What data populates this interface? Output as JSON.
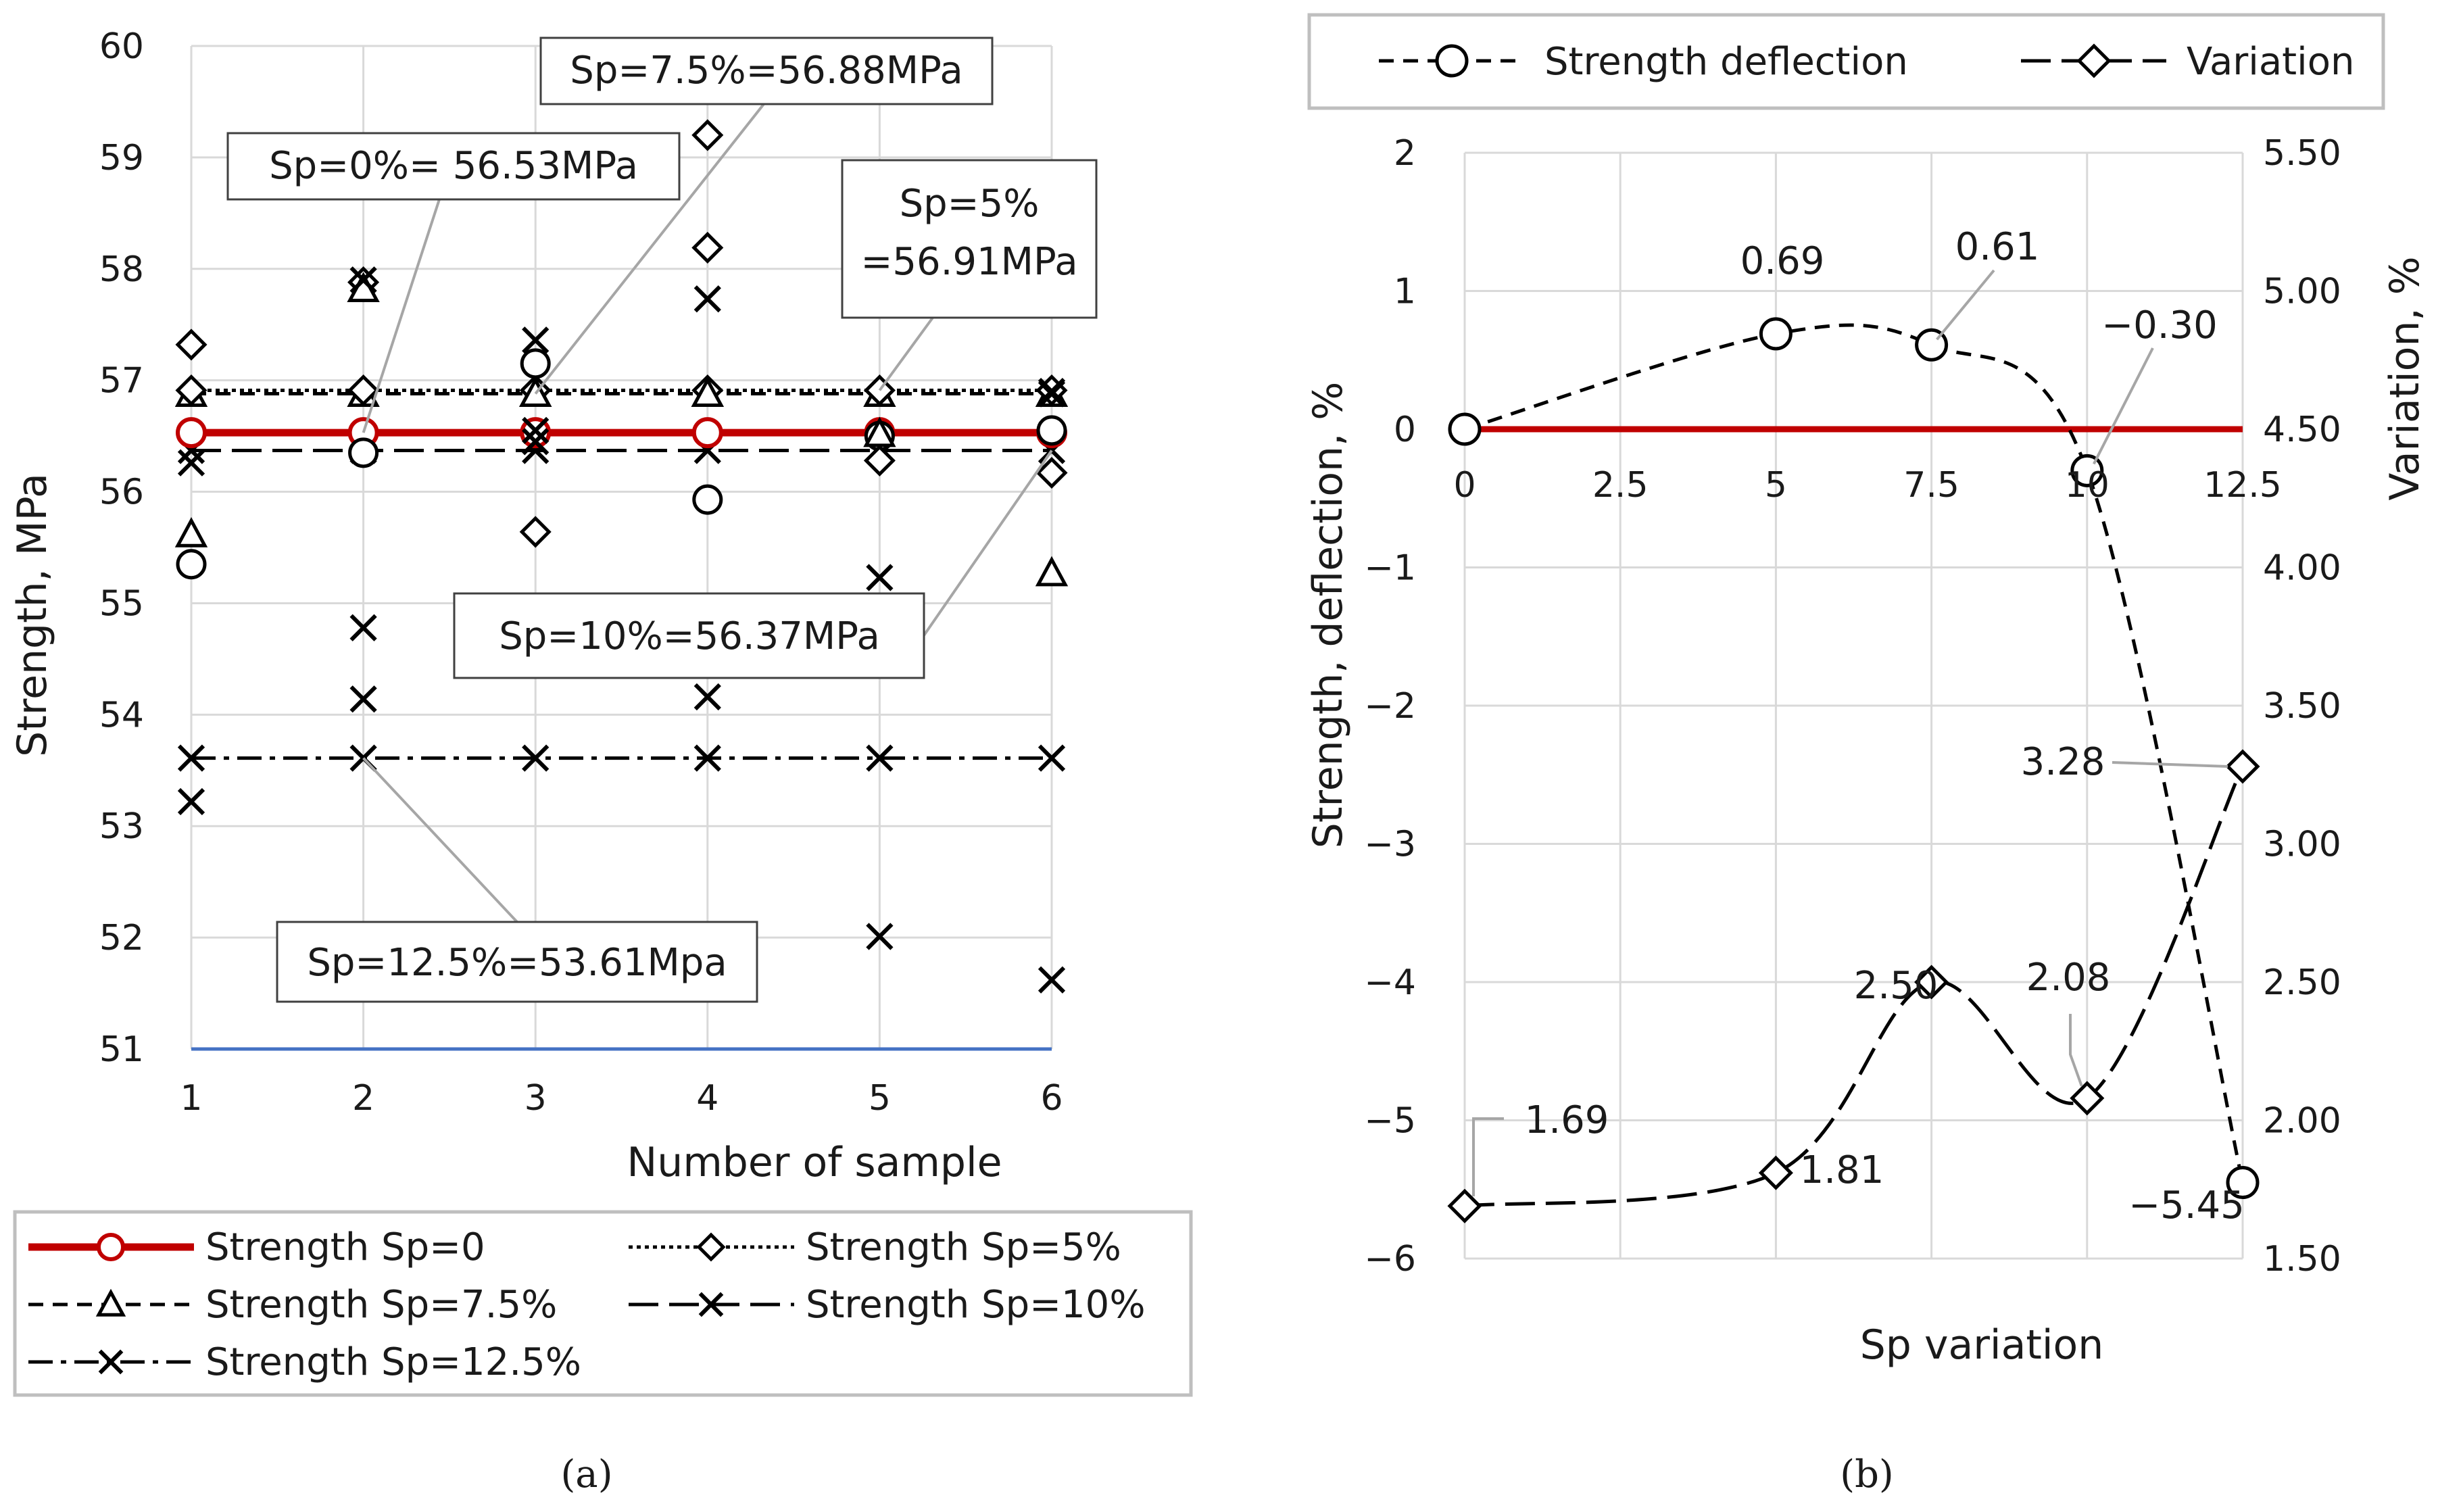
{
  "chart_data": [
    {
      "panel": "(a)",
      "type": "line",
      "xlabel": "Number of sample",
      "ylabel": "Strength, MPa",
      "x": [
        1,
        2,
        3,
        4,
        5,
        6
      ],
      "xlim": [
        1,
        6
      ],
      "ylim": [
        51,
        60
      ],
      "yticks": [
        51,
        52,
        53,
        54,
        55,
        56,
        57,
        58,
        59,
        60
      ],
      "grid": true,
      "legend_position": "bottom",
      "series": [
        {
          "name": "Strength Sp=0",
          "marker": "circle",
          "style": "solid-red",
          "line_value": 56.53,
          "points": [
            55.35,
            56.35,
            57.15,
            55.93,
            56.5,
            56.55
          ]
        },
        {
          "name": "Strength Sp=5%",
          "marker": "diamond",
          "style": "dotted",
          "line_value": 56.91,
          "points": [
            57.32,
            57.88,
            55.64,
            58.19,
            56.28,
            56.17
          ]
        },
        {
          "name": "Strength Sp=7.5%",
          "marker": "triangle",
          "style": "short-dash",
          "line_value": 56.88,
          "points": [
            55.62,
            57.82,
            56.88,
            56.88,
            56.52,
            55.27
          ]
        },
        {
          "name": "Strength Sp=10%",
          "marker": "x",
          "style": "long-dash",
          "line_value": 56.37,
          "points": [
            56.26,
            54.78,
            57.36,
            57.73,
            55.23,
            56.9
          ]
        },
        {
          "name": "Strength Sp=12.5%",
          "marker": "x",
          "style": "dash-dot",
          "line_value": 53.61,
          "points": [
            53.22,
            54.14,
            56.45,
            54.16,
            52.01,
            51.62
          ]
        }
      ],
      "extra_markers": [
        {
          "x": 4,
          "y": 59.2,
          "marker": "diamond"
        },
        {
          "x": 2,
          "y": 57.9,
          "marker": "x"
        },
        {
          "x": 6,
          "y": 56.88,
          "marker": "x"
        },
        {
          "x": 3,
          "y": 56.55,
          "marker": "x"
        }
      ],
      "baseline_value": 51,
      "baseline_color": "#4472C4",
      "callouts": [
        {
          "text": "Sp=0%= 56.53MPa",
          "target": [
            2,
            56.53
          ]
        },
        {
          "text": "Sp=7.5%=56.88MPa",
          "target": [
            3,
            56.88
          ]
        },
        {
          "text": "Sp=5%\n=56.91MPa",
          "target": [
            5,
            56.91
          ]
        },
        {
          "text": "Sp=10%=56.37MPa",
          "target": [
            6,
            56.37
          ]
        },
        {
          "text": "Sp=12.5%=53.61Mpa",
          "target": [
            2,
            53.61
          ]
        }
      ],
      "caption": "(a)"
    },
    {
      "panel": "(b)",
      "type": "line",
      "xlabel": "Sp variation",
      "ylabel": "Strength, deflection, %",
      "y2label": "Variation, %",
      "xlim": [
        0,
        12.5
      ],
      "xticks": [
        0,
        2.5,
        5,
        7.5,
        10,
        12.5
      ],
      "ylim": [
        -6,
        2
      ],
      "yticks": [
        -6,
        -5,
        -4,
        -3,
        -2,
        -1,
        0,
        1,
        2
      ],
      "y2lim": [
        1.5,
        5.5
      ],
      "y2ticks": [
        "1.50",
        "2.00",
        "2.50",
        "3.00",
        "3.50",
        "4.00",
        "4.50",
        "5.00",
        "5.50"
      ],
      "grid": true,
      "legend_position": "top",
      "zero_line_color": "#C00000",
      "series": [
        {
          "name": "Strength deflection",
          "axis": "left",
          "marker": "circle",
          "style": "dashed",
          "x": [
            0,
            5,
            7.5,
            10,
            12.5
          ],
          "y": [
            0,
            0.69,
            0.61,
            -0.3,
            -5.45
          ],
          "labels": [
            "",
            "0.69",
            "0.61",
            "−0.30",
            "−5.45"
          ]
        },
        {
          "name": "Variation",
          "axis": "right",
          "marker": "diamond",
          "style": "long-dash",
          "x": [
            0,
            5,
            7.5,
            10,
            12.5
          ],
          "y": [
            1.69,
            1.81,
            2.5,
            2.08,
            3.28
          ],
          "labels": [
            "1.69",
            "1.81",
            "2.50",
            "2.08",
            "3.28"
          ]
        }
      ],
      "caption": "(b)"
    }
  ]
}
